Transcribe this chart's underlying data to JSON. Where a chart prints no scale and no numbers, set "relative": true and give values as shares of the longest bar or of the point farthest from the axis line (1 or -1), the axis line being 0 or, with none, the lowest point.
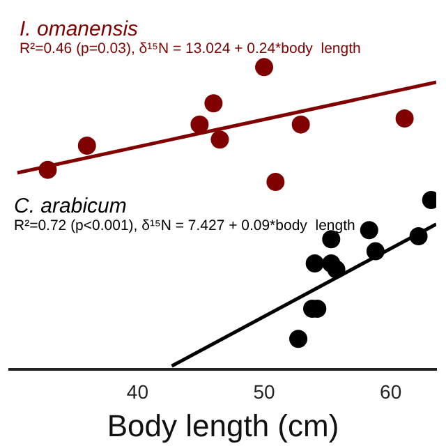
{
  "chart_data": {
    "type": "scatter",
    "relative": true,
    "xlabel": "Body length (cm)",
    "xlim": [
      29.9,
      63.6
    ],
    "xticks": [
      40,
      50,
      60
    ],
    "marker": "circle",
    "legend": false,
    "grid": false,
    "series": [
      {
        "name": "I. omanensis",
        "type": "scatter",
        "color": "#800000",
        "x": [
          32.9,
          36.0,
          44.9,
          46.0,
          46.5,
          50.0,
          52.9,
          50.9,
          61.1
        ],
        "values": [
          0.66,
          0.74,
          0.81,
          0.88,
          0.76,
          1,
          0.81,
          0.62,
          0.83
        ]
      },
      {
        "type": "line",
        "color": "#800000",
        "marker": "none",
        "x": [
          30.5,
          63.6
        ],
        "values": [
          0.65,
          0.95
        ]
      },
      {
        "name": "C. arabicum",
        "type": "scatter",
        "color": "#000000",
        "x": [
          63.2,
          55.3,
          58.3,
          62.2,
          58.8,
          54.0,
          55.3,
          55.7,
          53.8,
          54.2,
          52.7
        ],
        "values": [
          0.56,
          0.43,
          0.46,
          0.44,
          0.39,
          0.35,
          0.35,
          0.33,
          0.2,
          0.2,
          0.1
        ]
      },
      {
        "type": "line",
        "color": "#000000",
        "marker": "none",
        "x": [
          42.7,
          63.6
        ],
        "values": [
          0.01,
          0.48
        ]
      }
    ],
    "annotations": [
      "R²=0.46 (p=0.03), δ¹⁵N = 13.024 + 0.24*body  length",
      "R²=0.72 (p<0.001), δ¹⁵N = 7.427 + 0.09*body  length"
    ]
  }
}
